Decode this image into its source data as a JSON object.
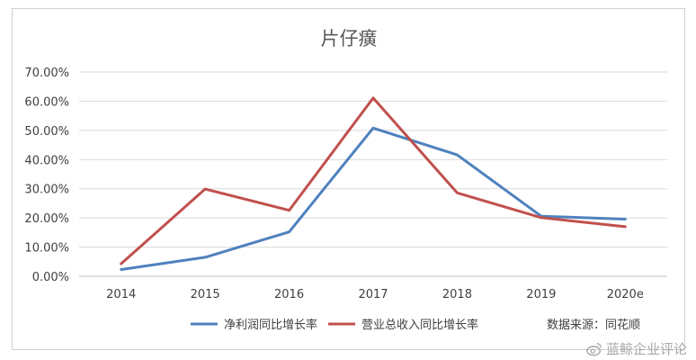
{
  "chart_data": {
    "type": "line",
    "title": "片仔癀",
    "categories": [
      "2014",
      "2015",
      "2016",
      "2017",
      "2018",
      "2019",
      "2020e"
    ],
    "ylim": [
      0,
      70
    ],
    "yticks": [
      "0.00%",
      "10.00%",
      "20.00%",
      "30.00%",
      "40.00%",
      "50.00%",
      "60.00%",
      "70.00%"
    ],
    "grid": true,
    "legend_position": "bottom",
    "series": [
      {
        "name": "净利润同比增长率",
        "color": "#4f81bd",
        "values": [
          2.3,
          6.5,
          15.2,
          50.8,
          41.6,
          20.6,
          19.6
        ]
      },
      {
        "name": "营业总收入同比增长率",
        "color": "#c0504d",
        "values": [
          4.3,
          29.9,
          22.6,
          61.1,
          28.6,
          20.1,
          17.0
        ]
      }
    ],
    "source_note": "数据来源：同花顺"
  },
  "watermark": "蓝鲸企业评论"
}
